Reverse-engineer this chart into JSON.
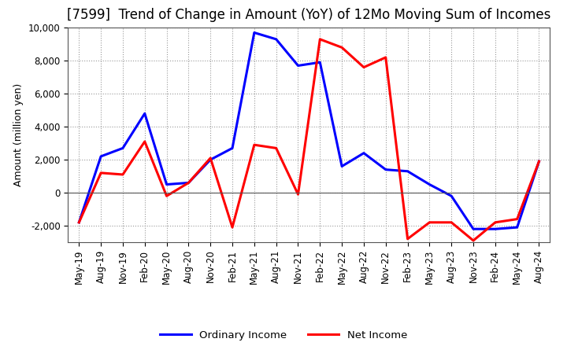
{
  "title": "[7599]  Trend of Change in Amount (YoY) of 12Mo Moving Sum of Incomes",
  "ylabel": "Amount (million yen)",
  "x_labels": [
    "May-19",
    "Aug-19",
    "Nov-19",
    "Feb-20",
    "May-20",
    "Aug-20",
    "Nov-20",
    "Feb-21",
    "May-21",
    "Aug-21",
    "Nov-21",
    "Feb-22",
    "May-22",
    "Aug-22",
    "Nov-22",
    "Feb-23",
    "May-23",
    "Aug-23",
    "Nov-23",
    "Feb-24",
    "May-24",
    "Aug-24"
  ],
  "ordinary_income": [
    -1800,
    2200,
    2700,
    4800,
    500,
    600,
    2000,
    2700,
    9700,
    9300,
    7700,
    7900,
    1600,
    2400,
    1400,
    1300,
    500,
    -200,
    -2200,
    -2200,
    -2100,
    1900
  ],
  "net_income": [
    -1800,
    1200,
    1100,
    3100,
    -200,
    600,
    2100,
    -2100,
    2900,
    2700,
    -100,
    9300,
    8800,
    7600,
    8200,
    -2800,
    -1800,
    -1800,
    -2900,
    -1800,
    -1600,
    1900
  ],
  "ordinary_color": "#0000ff",
  "net_color": "#ff0000",
  "ylim": [
    -3000,
    10000
  ],
  "yticks": [
    -2000,
    0,
    2000,
    4000,
    6000,
    8000,
    10000
  ],
  "background_color": "#ffffff",
  "grid_color": "#999999",
  "title_fontsize": 12,
  "axis_fontsize": 9,
  "tick_fontsize": 8.5,
  "legend_labels": [
    "Ordinary Income",
    "Net Income"
  ]
}
